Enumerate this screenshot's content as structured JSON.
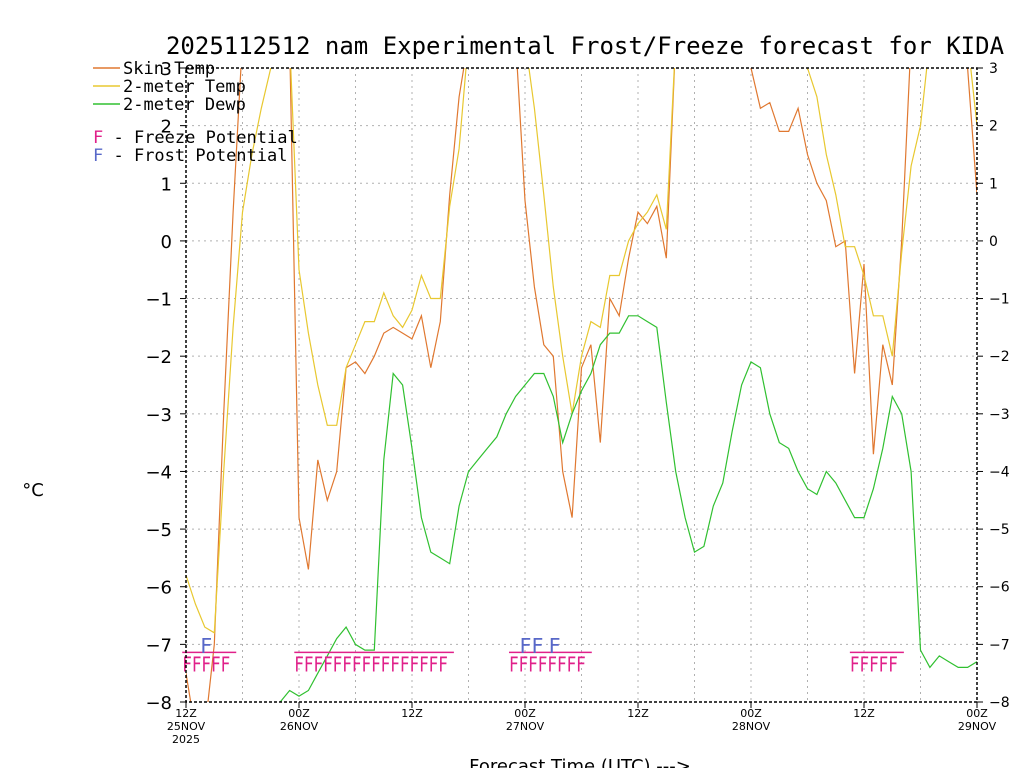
{
  "chart_data": {
    "type": "line",
    "title": "2025112512 nam Experimental Frost/Freeze forecast for KIDA",
    "ylabel": "°C",
    "xlabel": "Forecast Time (UTC) --->",
    "ylim": [
      -8,
      3
    ],
    "yticks": [
      -8,
      -7,
      -6,
      -5,
      -4,
      -3,
      -2,
      -1,
      0,
      1,
      2,
      3
    ],
    "xlim": [
      0,
      84
    ],
    "xticks": [
      {
        "hour": 0,
        "top": "12Z",
        "mid": "25NOV",
        "bottom": "2025"
      },
      {
        "hour": 12,
        "top": "00Z",
        "mid": "26NOV",
        "bottom": ""
      },
      {
        "hour": 24,
        "top": "12Z",
        "mid": "",
        "bottom": ""
      },
      {
        "hour": 36,
        "top": "00Z",
        "mid": "27NOV",
        "bottom": ""
      },
      {
        "hour": 48,
        "top": "12Z",
        "mid": "",
        "bottom": ""
      },
      {
        "hour": 60,
        "top": "00Z",
        "mid": "28NOV",
        "bottom": ""
      },
      {
        "hour": 72,
        "top": "12Z",
        "mid": "",
        "bottom": ""
      },
      {
        "hour": 84,
        "top": "00Z",
        "mid": "29NOV",
        "bottom": ""
      }
    ],
    "legend": [
      {
        "label": "Skin Temp",
        "color": "#e07830"
      },
      {
        "label": "2-meter Temp",
        "color": "#e8c830"
      },
      {
        "label": "2-meter Dewp",
        "color": "#30c030"
      }
    ],
    "potential_legend": [
      {
        "label": "F - Freeze Potential",
        "color": "#e0208a",
        "letter": "F",
        "text": " - Freeze Potential"
      },
      {
        "label": "F - Frost Potential",
        "color": "#5868c8",
        "letter": "F",
        "text": " - Frost Potential"
      }
    ],
    "series": [
      {
        "name": "Skin Temp",
        "color": "#e07830",
        "x": [
          0,
          1,
          2,
          3,
          4,
          5,
          6,
          7,
          8,
          9,
          10,
          11,
          12,
          13,
          14,
          15,
          16,
          17,
          18,
          19,
          20,
          21,
          22,
          23,
          24,
          25,
          26,
          27,
          28,
          29,
          30,
          31,
          32,
          33,
          34,
          35,
          36,
          37,
          38,
          39,
          40,
          41,
          42,
          43,
          44,
          45,
          46,
          47,
          48,
          49,
          50,
          51,
          52,
          53,
          54,
          55,
          56,
          57,
          58,
          59,
          60,
          61,
          62,
          63,
          64,
          65,
          66,
          67,
          68,
          69,
          70,
          71,
          72,
          73,
          74,
          75,
          76,
          77,
          78,
          79,
          80,
          81,
          82,
          83,
          84
        ],
        "y": [
          -7.5,
          -8.5,
          -8.5,
          -7.0,
          -3.0,
          0.5,
          3.5,
          3.5,
          3.5,
          3.5,
          3.5,
          3.5,
          -4.8,
          -5.7,
          -3.8,
          -4.5,
          -4.0,
          -2.2,
          -2.1,
          -2.3,
          -2.0,
          -1.6,
          -1.5,
          -1.6,
          -1.7,
          -1.3,
          -2.2,
          -1.4,
          0.8,
          2.5,
          3.5,
          3.5,
          3.5,
          3.5,
          3.5,
          3.5,
          0.7,
          -0.8,
          -1.8,
          -2.0,
          -4.0,
          -4.8,
          -2.2,
          -1.8,
          -3.5,
          -1.0,
          -1.3,
          -0.3,
          0.5,
          0.3,
          0.6,
          -0.3,
          3.5,
          3.5,
          3.5,
          3.5,
          3.5,
          3.5,
          3.5,
          3.5,
          3.0,
          2.3,
          2.4,
          1.9,
          1.9,
          2.3,
          1.5,
          1.0,
          0.7,
          -0.1,
          0.0,
          -2.3,
          -0.4,
          -3.7,
          -1.8,
          -2.5,
          0.0,
          3.5,
          3.5,
          3.5,
          3.5,
          3.5,
          3.5,
          3.0,
          0.8
        ]
      },
      {
        "name": "2-meter Temp",
        "color": "#e8c830",
        "x": [
          0,
          1,
          2,
          3,
          4,
          5,
          6,
          7,
          8,
          9,
          10,
          11,
          12,
          13,
          14,
          15,
          16,
          17,
          18,
          19,
          20,
          21,
          22,
          23,
          24,
          25,
          26,
          27,
          28,
          29,
          30,
          31,
          32,
          33,
          34,
          35,
          36,
          37,
          38,
          39,
          40,
          41,
          42,
          43,
          44,
          45,
          46,
          47,
          48,
          49,
          50,
          51,
          52,
          53,
          54,
          55,
          56,
          57,
          58,
          59,
          60,
          61,
          62,
          63,
          64,
          65,
          66,
          67,
          68,
          69,
          70,
          71,
          72,
          73,
          74,
          75,
          76,
          77,
          78,
          79,
          80,
          81,
          82,
          83,
          84
        ],
        "y": [
          -5.8,
          -6.3,
          -6.7,
          -6.8,
          -4.0,
          -1.5,
          0.5,
          1.5,
          2.3,
          3.0,
          3.5,
          3.5,
          -0.5,
          -1.6,
          -2.5,
          -3.2,
          -3.2,
          -2.2,
          -1.8,
          -1.4,
          -1.4,
          -0.9,
          -1.3,
          -1.5,
          -1.2,
          -0.6,
          -1.0,
          -1.0,
          0.6,
          1.6,
          3.5,
          3.5,
          3.5,
          3.5,
          3.5,
          3.5,
          3.5,
          2.3,
          0.8,
          -0.8,
          -2.0,
          -3.0,
          -2.0,
          -1.4,
          -1.5,
          -0.6,
          -0.6,
          0.0,
          0.3,
          0.5,
          0.8,
          0.2,
          3.5,
          3.5,
          3.5,
          3.5,
          3.5,
          3.5,
          3.5,
          3.5,
          3.5,
          3.5,
          3.5,
          3.5,
          3.0,
          3.2,
          3.0,
          2.5,
          1.5,
          0.8,
          -0.1,
          -0.1,
          -0.6,
          -1.3,
          -1.3,
          -2.0,
          -0.2,
          1.3,
          2.0,
          3.5,
          3.5,
          3.5,
          3.5,
          3.5,
          2.0
        ]
      },
      {
        "name": "2-meter Dewp",
        "color": "#30c030",
        "x": [
          10,
          11,
          12,
          13,
          14,
          15,
          16,
          17,
          18,
          19,
          20,
          21,
          22,
          23,
          24,
          25,
          26,
          27,
          28,
          29,
          30,
          31,
          32,
          33,
          34,
          35,
          36,
          37,
          38,
          39,
          40,
          41,
          42,
          43,
          44,
          45,
          46,
          47,
          48,
          49,
          50,
          51,
          52,
          53,
          54,
          55,
          56,
          57,
          58,
          59,
          60,
          61,
          62,
          63,
          64,
          65,
          66,
          67,
          68,
          69,
          70,
          71,
          72,
          73,
          74,
          75,
          76,
          77,
          78,
          79,
          80,
          81,
          82,
          83,
          84
        ],
        "y": [
          -8.0,
          -7.8,
          -7.9,
          -7.8,
          -7.5,
          -7.2,
          -6.9,
          -6.7,
          -7.0,
          -7.1,
          -7.1,
          -3.8,
          -2.3,
          -2.5,
          -3.6,
          -4.8,
          -5.4,
          -5.5,
          -5.6,
          -4.6,
          -4.0,
          -3.8,
          -3.6,
          -3.4,
          -3.0,
          -2.7,
          -2.5,
          -2.3,
          -2.3,
          -2.7,
          -3.5,
          -3.0,
          -2.6,
          -2.3,
          -1.8,
          -1.6,
          -1.6,
          -1.3,
          -1.3,
          -1.4,
          -1.5,
          -2.8,
          -4.0,
          -4.8,
          -5.4,
          -5.3,
          -4.6,
          -4.2,
          -3.3,
          -2.5,
          -2.1,
          -2.2,
          -3.0,
          -3.5,
          -3.6,
          -4.0,
          -4.3,
          -4.4,
          -4.0,
          -4.2,
          -4.5,
          -4.8,
          -4.8,
          -4.3,
          -3.6,
          -2.7,
          -3.0,
          -4.0,
          -7.1,
          -7.4,
          -7.2,
          -7.3,
          -7.4,
          -7.4,
          -7.3
        ]
      }
    ],
    "freeze_marks": [
      {
        "text": "FFFFF",
        "hour": -0.4
      },
      {
        "text": "FFFFFFFFFFFFFFFF",
        "hour": 11.5
      },
      {
        "text": "FFFFFFFF",
        "hour": 34.3
      },
      {
        "text": "FFFFF",
        "hour": 70.5
      }
    ],
    "frost_marks": [
      {
        "text": "F",
        "hour": 1.5
      },
      {
        "text": "FF",
        "hour": 35.4
      },
      {
        "text": "F",
        "hour": 38.5
      }
    ]
  }
}
